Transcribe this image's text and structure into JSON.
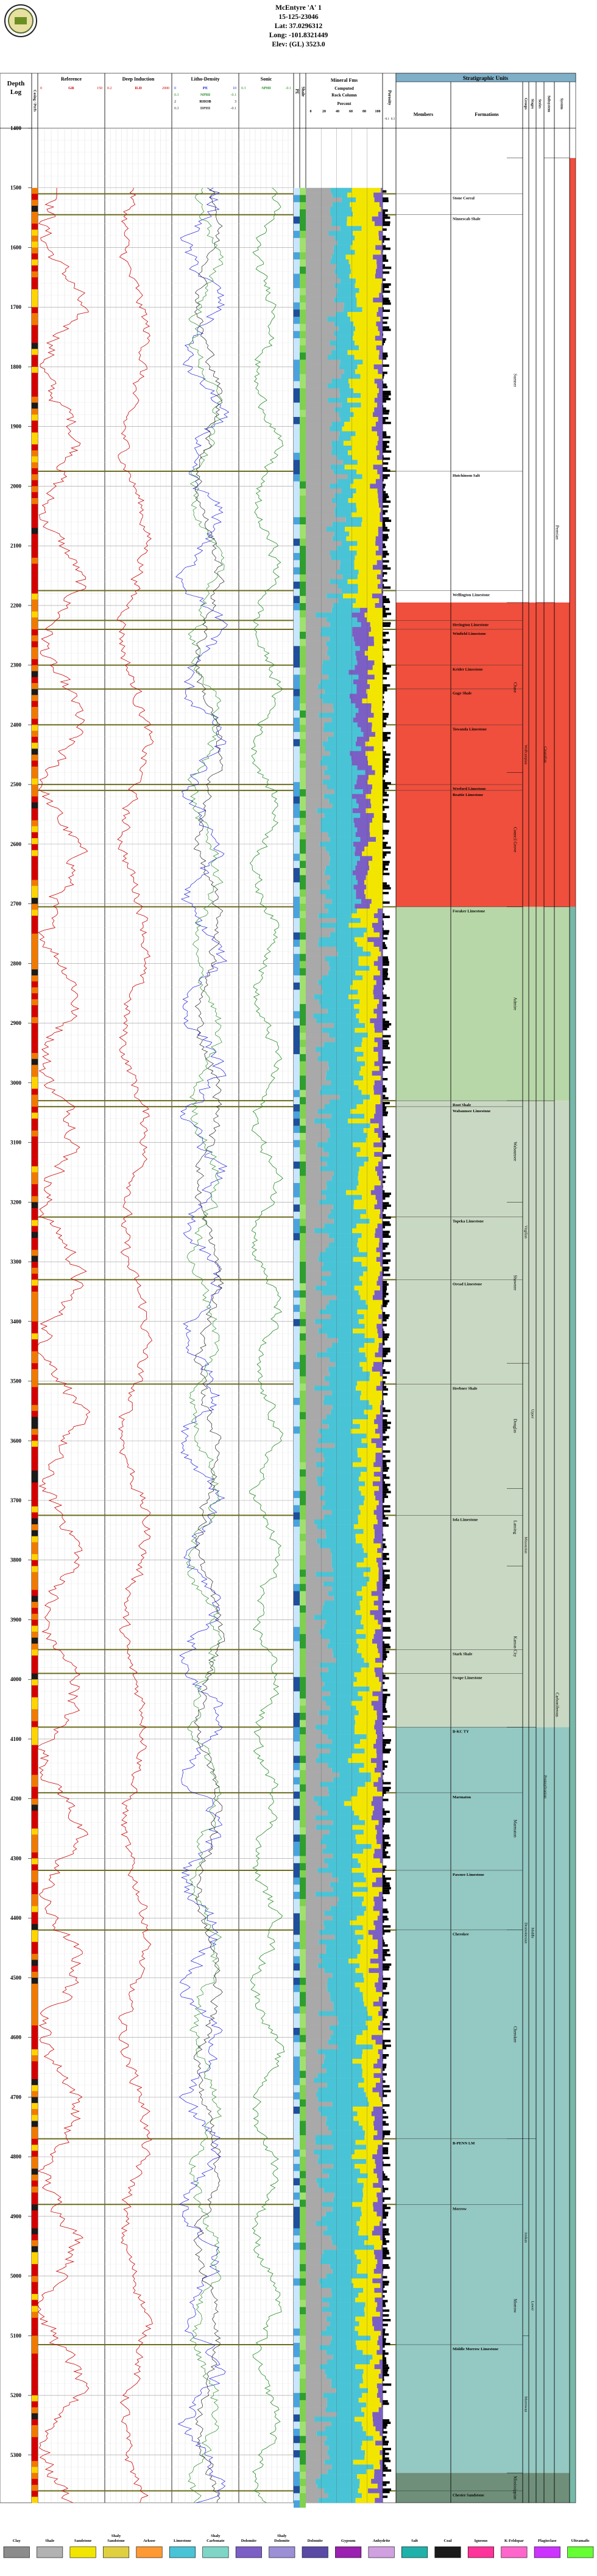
{
  "header": {
    "well_name": "McEntyre 'A' 1",
    "api": "15-125-23046",
    "lat": "Lat: 37.0296312",
    "long": "Long: -101.8321449",
    "elev": "Elev: (GL) 3523.0"
  },
  "columns": {
    "depth": "Depth Log",
    "casing": "Casing / Perfs",
    "reference": "Reference",
    "gr_curve": "GR",
    "gr_min": "0",
    "gr_max": "150",
    "deep_induction": "Deep Induction",
    "ild_curve": "ILD",
    "ild_min": "0.2",
    "ild_max": "2000",
    "litho_density": "Litho-Density",
    "pe_curve": "PE",
    "pe_min": "0",
    "pe_max": "10",
    "nphi_curve": "NPHI",
    "nphi_min": "0.3",
    "nphi_max": "-0.1",
    "rhob_curve": "RHOB",
    "rhob_min": "2",
    "rhob_max": "3",
    "dphi_curve": "DPHI",
    "dphi_min": "0.3",
    "dphi_max": "-0.1",
    "sonic": "Sonic",
    "sphi_curve": "SPHI",
    "sphi_min": "0.3",
    "sphi_max": "-0.1",
    "pe_track": "PE",
    "shale": "Shale",
    "mineral_fm": "Mineral Fms",
    "computed": "Computed",
    "rock_column": "Rock Column",
    "percent": "Percent",
    "pct_ticks": [
      "0",
      "20",
      "40",
      "60",
      "80",
      "100"
    ],
    "porosity": "Porosity",
    "porosity_min": "-0.1",
    "porosity_max": "0.3",
    "strat": "Stratigraphic Units",
    "members": "Members",
    "formations": "Formations",
    "groups": "Groups",
    "stages": "Stages",
    "series": "Series",
    "subsystem": "Subsystem",
    "system": "System"
  },
  "strat_units": {
    "formations": [
      {
        "name": "Stone Corral",
        "depth": 1510
      },
      {
        "name": "Ninnescah Shale",
        "depth": 1545
      },
      {
        "name": "Hutchinson Salt",
        "depth": 1975
      },
      {
        "name": "Wellington Limestone",
        "depth": 2175
      },
      {
        "name": "Herington Limestone",
        "depth": 2225
      },
      {
        "name": "Winfield Limestone",
        "depth": 2240
      },
      {
        "name": "Krider Limestone",
        "depth": 2300
      },
      {
        "name": "Gage Shale",
        "depth": 2340
      },
      {
        "name": "Towanda Limestone",
        "depth": 2400
      },
      {
        "name": "Wreford Limestone",
        "depth": 2500
      },
      {
        "name": "Beattie Limestone",
        "depth": 2510
      },
      {
        "name": "Foraker Limestone",
        "depth": 2705
      },
      {
        "name": "Root Shale",
        "depth": 3030
      },
      {
        "name": "Wabaunsee Limestone",
        "depth": 3040
      },
      {
        "name": "Topeka Limestone",
        "depth": 3225
      },
      {
        "name": "Oread Limestone",
        "depth": 3330
      },
      {
        "name": "Heebner Shale",
        "depth": 3505
      },
      {
        "name": "Iola Limestone",
        "depth": 3725
      },
      {
        "name": "Stark Shale",
        "depth": 3950
      },
      {
        "name": "Swope Limestone",
        "depth": 3990
      },
      {
        "name": "B-KC TY",
        "depth": 4080
      },
      {
        "name": "Marmaton",
        "depth": 4190
      },
      {
        "name": "Pawnee Limestone",
        "depth": 4320
      },
      {
        "name": "Cherokee",
        "depth": 4420
      },
      {
        "name": "B-PENN LM",
        "depth": 4770
      },
      {
        "name": "Morrow",
        "depth": 4880
      },
      {
        "name": "Middle Morrow Limestone",
        "depth": 5115
      },
      {
        "name": "Chester Sandstone",
        "depth": 5360
      }
    ],
    "groups": [
      {
        "name": "Sumner",
        "top": 1450,
        "bottom": 2195
      },
      {
        "name": "Chase",
        "top": 2195,
        "bottom": 2480
      },
      {
        "name": "Council Grove",
        "top": 2480,
        "bottom": 2705
      },
      {
        "name": "Admire",
        "top": 2705,
        "bottom": 3030
      },
      {
        "name": "Wabaunsee",
        "top": 3030,
        "bottom": 3200
      },
      {
        "name": "Shawnee",
        "top": 3200,
        "bottom": 3470
      },
      {
        "name": "Douglas",
        "top": 3470,
        "bottom": 3680
      },
      {
        "name": "Lansing",
        "top": 3680,
        "bottom": 3810
      },
      {
        "name": "Kansas City",
        "top": 3810,
        "bottom": 4080
      },
      {
        "name": "Marmaton",
        "top": 4080,
        "bottom": 4420
      },
      {
        "name": "Cherokee",
        "top": 4420,
        "bottom": 4770
      },
      {
        "name": "Morrow",
        "top": 4770,
        "bottom": 5330
      },
      {
        "name": "Mississippian",
        "top": 5330,
        "bottom": 5380
      }
    ],
    "stages": [
      {
        "name": "Wolfcampian",
        "top": 2195,
        "bottom": 2705
      },
      {
        "name": "Virgilian",
        "top": 3030,
        "bottom": 3470
      },
      {
        "name": "Missourian",
        "top": 3470,
        "bottom": 4080
      },
      {
        "name": "Desmoinesian",
        "top": 4080,
        "bottom": 4770
      },
      {
        "name": "Atokan",
        "top": 4770,
        "bottom": 5100
      },
      {
        "name": "Morrowan",
        "top": 5100,
        "bottom": 5330
      }
    ],
    "series": [
      {
        "name": "Upper",
        "top": 3030,
        "bottom": 4080
      },
      {
        "name": "Middle",
        "top": 4080,
        "bottom": 4770
      },
      {
        "name": "Lower",
        "top": 4770,
        "bottom": 5330
      }
    ],
    "subsystem": [
      {
        "name": "Cisuralian",
        "top": 2195,
        "bottom": 2705
      },
      {
        "name": "Pennsylvanian",
        "top": 3030,
        "bottom": 5330
      }
    ],
    "system": [
      {
        "name": "Permian",
        "top": 1450,
        "bottom": 2705
      },
      {
        "name": "Carboniferous",
        "top": 2705,
        "bottom": 5380
      }
    ]
  },
  "colors": {
    "permian": "#ef4f3c",
    "carboniferous_upper": "#9fc19d",
    "carboniferous_middle": "#8bbeb7",
    "carboniferous_lower": "#7fae9a",
    "gr": "#cc0000",
    "ild": "#cc0000",
    "pe": "#1a1adc",
    "nphi": "#228b22",
    "rhob": "#000000",
    "sonic": "#228b22",
    "clay": "#8c8c8c",
    "shale": "#a9a9a9",
    "sandstone": "#f2e600",
    "limestone": "#49c4d6",
    "dolomite": "#7c5fc5",
    "gypsum": "#9b1fb0",
    "anhydrite": "#d0a0e0",
    "salt": "#20b2aa"
  },
  "legend": [
    {
      "label": "Clay",
      "color": "#8c8c8c",
      "icon": "clay-swatch"
    },
    {
      "label": "Shale",
      "color": "#b2b2b2",
      "icon": "shale-swatch"
    },
    {
      "label": "Sandstone",
      "color": "#f2e600",
      "icon": "sandstone-swatch"
    },
    {
      "label": "Shaly Sandstone",
      "color": "#e0d040",
      "icon": "shaly-sandstone-swatch"
    },
    {
      "label": "Arkose",
      "color": "#ff9933",
      "icon": "arkose-swatch"
    },
    {
      "label": "Limestone",
      "color": "#49c4d6",
      "icon": "limestone-swatch"
    },
    {
      "label": "Shaly Carbonate",
      "color": "#7fd6c6",
      "icon": "shaly-carbonate-swatch"
    },
    {
      "label": "Dolomite",
      "color": "#7c5fc5",
      "icon": "dolomite-swatch"
    },
    {
      "label": "Shaly Dolomite",
      "color": "#9c8fd5",
      "icon": "shaly-dolomite-swatch"
    },
    {
      "label": "Dolomite",
      "color": "#5a4aa5",
      "icon": "dolomite2-swatch"
    },
    {
      "label": "Gypsum",
      "color": "#9b1fb0",
      "icon": "gypsum-swatch"
    },
    {
      "label": "Anhydrite",
      "color": "#d0a0e0",
      "icon": "anhydrite-swatch"
    },
    {
      "label": "Salt",
      "color": "#20b2aa",
      "icon": "salt-swatch"
    },
    {
      "label": "Coal",
      "color": "#1a1a1a",
      "icon": "coal-swatch"
    },
    {
      "label": "Igneous",
      "color": "#ff3399",
      "icon": "igneous-swatch"
    },
    {
      "label": "K-Feldspar",
      "color": "#ff66cc",
      "icon": "k-feldspar-swatch"
    },
    {
      "label": "Plagioclase",
      "color": "#cc33ff",
      "icon": "plagioclase-swatch"
    },
    {
      "label": "Ultramafic",
      "color": "#66ff33",
      "icon": "ultramafic-swatch"
    }
  ],
  "chart_data": {
    "type": "line",
    "x_axis": "Depth",
    "depth_range": [
      1400,
      5380
    ],
    "depth_ticks": [
      "1400",
      "1500",
      "1600",
      "1700",
      "1800",
      "1900",
      "2000",
      "2100",
      "2200",
      "2300",
      "2400",
      "2500",
      "2600",
      "2700",
      "2800",
      "2900",
      "3000",
      "3100",
      "3200",
      "3300",
      "3400",
      "3500",
      "3600",
      "3700",
      "3800",
      "3900",
      "4000",
      "4100",
      "4200",
      "4300",
      "4400",
      "4500",
      "4600",
      "4700",
      "4800",
      "4900",
      "5000",
      "5100",
      "5200",
      "5300"
    ],
    "series": [
      {
        "name": "GR",
        "range": [
          0,
          150
        ]
      },
      {
        "name": "ILD",
        "range": [
          0.2,
          2000
        ],
        "scale": "log"
      },
      {
        "name": "PE",
        "range": [
          0,
          10
        ]
      },
      {
        "name": "NPHI",
        "range": [
          0.3,
          -0.1
        ]
      },
      {
        "name": "RHOB",
        "range": [
          2,
          3
        ]
      },
      {
        "name": "DPHI",
        "range": [
          0.3,
          -0.1
        ]
      },
      {
        "name": "SPHI",
        "range": [
          0.3,
          -0.1
        ]
      }
    ]
  }
}
